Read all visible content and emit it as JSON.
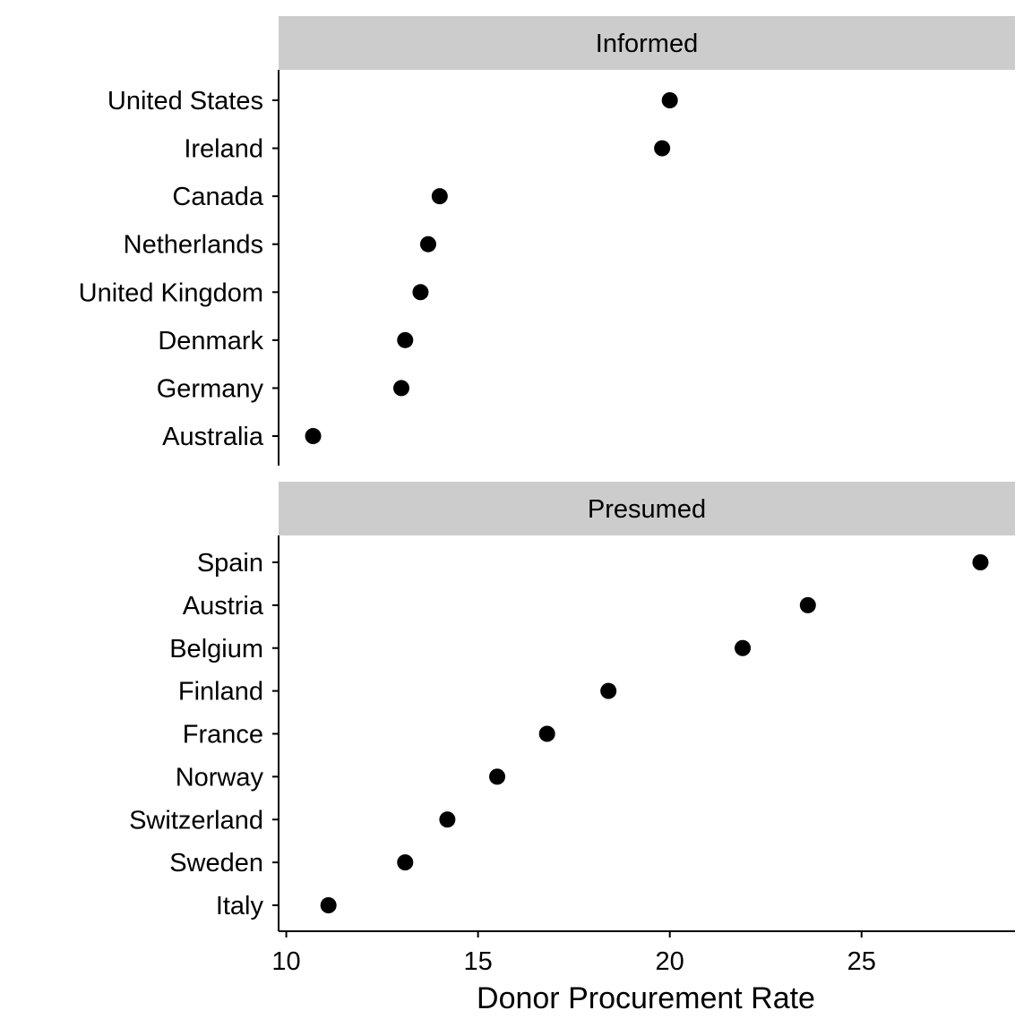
{
  "chart_data": {
    "type": "scatter",
    "xlabel": "Donor Procurement Rate",
    "ylabel": "",
    "xlim": [
      9.8,
      29
    ],
    "x_ticks": [
      10,
      15,
      20,
      25
    ],
    "grid": false,
    "legend": "none",
    "colors": {
      "point": "#000000",
      "strip_bg": "#cccccc",
      "axis": "#000000"
    },
    "facets": [
      {
        "label": "Informed",
        "categories": [
          "United States",
          "Ireland",
          "Canada",
          "Netherlands",
          "United Kingdom",
          "Denmark",
          "Germany",
          "Australia"
        ],
        "values": [
          20.0,
          19.8,
          14.0,
          13.7,
          13.5,
          13.1,
          13.0,
          10.7
        ]
      },
      {
        "label": "Presumed",
        "categories": [
          "Spain",
          "Austria",
          "Belgium",
          "Finland",
          "France",
          "Norway",
          "Switzerland",
          "Sweden",
          "Italy"
        ],
        "values": [
          28.1,
          23.6,
          21.9,
          18.4,
          16.8,
          15.5,
          14.2,
          13.1,
          11.1
        ]
      }
    ]
  }
}
